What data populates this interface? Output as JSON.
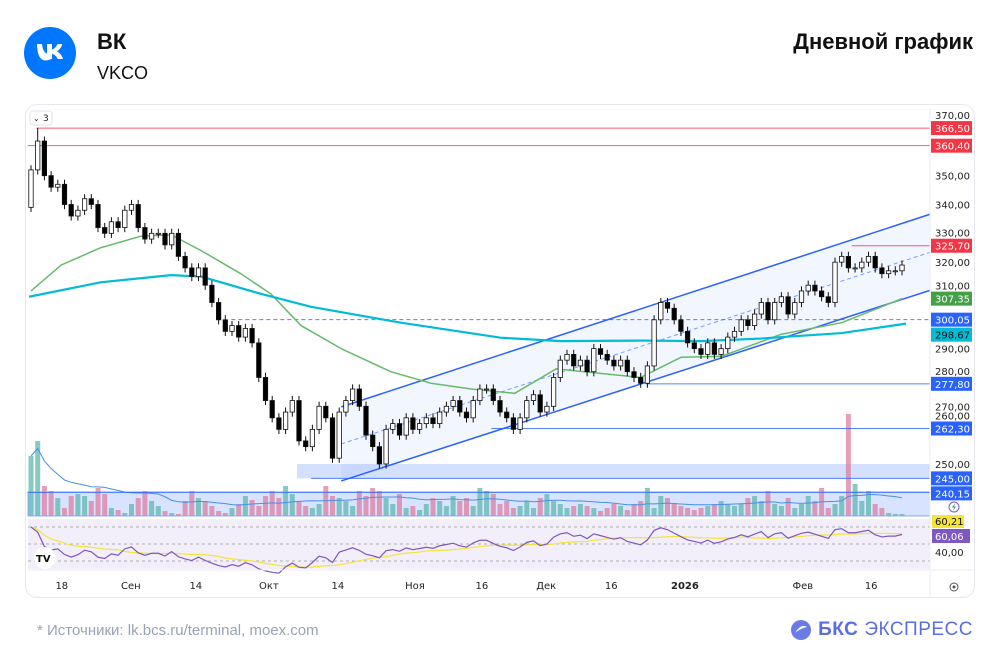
{
  "header": {
    "name": "ВК",
    "code": "VKCO",
    "title": "Дневной график",
    "logo_text": "VK"
  },
  "footer": {
    "sources": "*  Источники: lk.bcs.ru/terminal, moex.com",
    "brand_a": "БКС",
    "brand_b": "ЭКСПРЕСС"
  },
  "chart_data": {
    "type": "candlestick",
    "title": "Дневной график",
    "collapse_label": "3",
    "ylim": [
      240,
      370
    ],
    "y_ticks": [
      370,
      350,
      340,
      330,
      320,
      310,
      290,
      280,
      270,
      260,
      250
    ],
    "y_tick_labels": [
      "370,00",
      "350,00",
      "340,00",
      "330,00",
      "320,00",
      "310,00",
      "290,00",
      "280,00",
      "270,00",
      "260,00",
      "250,00"
    ],
    "x_ticks": [
      {
        "label": "18",
        "i": 4.6
      },
      {
        "label": "Сен",
        "i": 14.9
      },
      {
        "label": "14",
        "i": 24.6
      },
      {
        "label": "Окт",
        "i": 35.5
      },
      {
        "label": "14",
        "i": 45.8
      },
      {
        "label": "Ноя",
        "i": 57.3
      },
      {
        "label": "16",
        "i": 67.3
      },
      {
        "label": "Дек",
        "i": 76.9
      },
      {
        "label": "16",
        "i": 86.6
      },
      {
        "label": "2026",
        "i": 97.6,
        "bold": true
      },
      {
        "label": "Фев",
        "i": 115.2
      },
      {
        "label": "16",
        "i": 125.4
      }
    ],
    "closes": [
      352,
      362,
      350,
      346,
      347,
      340,
      336,
      338,
      342,
      340,
      332,
      330,
      334,
      332,
      338,
      340,
      332,
      328,
      330,
      330,
      326,
      330,
      322,
      318,
      315,
      318,
      312,
      306,
      300,
      296,
      298,
      294,
      297,
      292,
      280,
      272,
      266,
      262,
      268,
      272,
      258,
      256,
      262,
      270,
      266,
      252,
      268,
      272,
      276,
      270,
      260,
      256,
      250,
      262,
      264,
      260,
      266,
      262,
      264,
      266,
      264,
      268,
      270,
      272,
      268,
      266,
      272,
      276,
      276,
      272,
      268,
      266,
      262,
      266,
      272,
      274,
      268,
      270,
      280,
      286,
      288,
      284,
      286,
      282,
      290,
      288,
      286,
      284,
      286,
      282,
      280,
      278,
      284,
      300,
      306,
      304,
      300,
      296,
      292,
      290,
      288,
      292,
      288,
      290,
      294,
      296,
      300,
      298,
      302,
      306,
      300,
      306,
      308,
      302,
      306,
      310,
      312,
      310,
      308,
      306,
      320,
      322,
      318,
      318,
      320,
      322,
      318,
      316,
      317,
      317,
      319
    ],
    "first_open": 339,
    "volumes": [
      60,
      75,
      30,
      25,
      18,
      8,
      20,
      22,
      20,
      15,
      28,
      22,
      8,
      6,
      3,
      12,
      18,
      25,
      15,
      10,
      5,
      3,
      2,
      15,
      25,
      18,
      15,
      10,
      5,
      3,
      8,
      12,
      20,
      16,
      10,
      20,
      25,
      18,
      30,
      22,
      15,
      10,
      8,
      12,
      30,
      20,
      18,
      15,
      10,
      25,
      20,
      28,
      25,
      18,
      12,
      22,
      8,
      10,
      6,
      12,
      18,
      15,
      10,
      20,
      15,
      18,
      10,
      28,
      25,
      22,
      12,
      15,
      8,
      10,
      15,
      8,
      18,
      22,
      15,
      12,
      8,
      10,
      12,
      10,
      8,
      5,
      8,
      12,
      10,
      6,
      12,
      15,
      28,
      8,
      20,
      18,
      12,
      10,
      8,
      6,
      8,
      10,
      12,
      15,
      12,
      10,
      12,
      18,
      20,
      15,
      25,
      12,
      10,
      18,
      8,
      12,
      20,
      15,
      28,
      8,
      12,
      20,
      102,
      32,
      15,
      25,
      12,
      8,
      3,
      2,
      2
    ],
    "ma_fast": {
      "color": "#66bb6a",
      "points": [
        [
          0,
          310
        ],
        [
          4.5,
          319
        ],
        [
          10.4,
          325
        ],
        [
          16.4,
          329
        ],
        [
          20.9,
          329.5
        ],
        [
          25.4,
          324
        ],
        [
          31.3,
          316
        ],
        [
          35.8,
          309
        ],
        [
          40.3,
          298
        ],
        [
          46.3,
          290
        ],
        [
          53.7,
          282
        ],
        [
          59.7,
          278
        ],
        [
          65.7,
          276
        ],
        [
          72.2,
          274.5
        ],
        [
          78.4,
          283
        ],
        [
          91.0,
          280
        ],
        [
          97.0,
          287
        ],
        [
          103.0,
          287.3
        ],
        [
          112.0,
          295
        ],
        [
          121.0,
          299
        ],
        [
          130.0,
          307.35
        ]
      ]
    },
    "ma_slow": {
      "color": "#00bcd4",
      "points": [
        [
          -0.3,
          308
        ],
        [
          10.4,
          313
        ],
        [
          20.9,
          315.5
        ],
        [
          25.4,
          315
        ],
        [
          34.3,
          309
        ],
        [
          41.8,
          304.5
        ],
        [
          55.2,
          299
        ],
        [
          70.1,
          293.8
        ],
        [
          79.1,
          292.6
        ],
        [
          91.0,
          292.8
        ],
        [
          100.0,
          292.6
        ],
        [
          108.9,
          293.5
        ],
        [
          121.0,
          295.4
        ],
        [
          130.6,
          298.67
        ]
      ]
    },
    "channel": {
      "color": "#2962ff",
      "start_i": 46.3,
      "end_i": 134.3,
      "upper": [
        269.8,
        336.7
      ],
      "lower": [
        244.1,
        310.3
      ]
    },
    "levels": [
      {
        "price": 366.5,
        "label": "366,50",
        "color": "#f23645",
        "from_i": 0.8
      },
      {
        "price": 360.4,
        "label": "360,40",
        "color": "#f23645",
        "from_i": -0.5
      },
      {
        "price": 325.7,
        "label": "325,70",
        "color": "#f23645",
        "from_i": 122.5
      },
      {
        "price": 307.35,
        "label": "307,35",
        "color": "#43a047"
      },
      {
        "price": 300.05,
        "label": "300,05",
        "color": "#2962ff",
        "from_i": 29.9,
        "dashed": true
      },
      {
        "price": 298.67,
        "label": "298,67",
        "color": "#00bcd4",
        "dark": true
      },
      {
        "price": 277.8,
        "label": "277,80",
        "color": "#2962ff",
        "from_i": 91.8
      },
      {
        "price": 262.3,
        "label": "262,30",
        "color": "#2962ff",
        "from_i": 68.7
      },
      {
        "price": 245.0,
        "label": "245,00",
        "color": "#2962ff",
        "from_i": 41.8
      },
      {
        "price": 240.15,
        "label": "240,15",
        "color": "#2962ff",
        "from_i": -0.5
      }
    ],
    "zone": {
      "from_i": 39.7,
      "low": 245.0,
      "high": 250.0
    },
    "rsi": {
      "last": "60,06",
      "ma_last": "60,21",
      "level_label": "40,00",
      "color": "#7e57c2",
      "ma_color": "#f5e43a"
    },
    "colors": {
      "up": "#ffffff",
      "down": "#000000",
      "vol_up": "#5fb8b0",
      "vol_down": "#de7fa0"
    }
  }
}
